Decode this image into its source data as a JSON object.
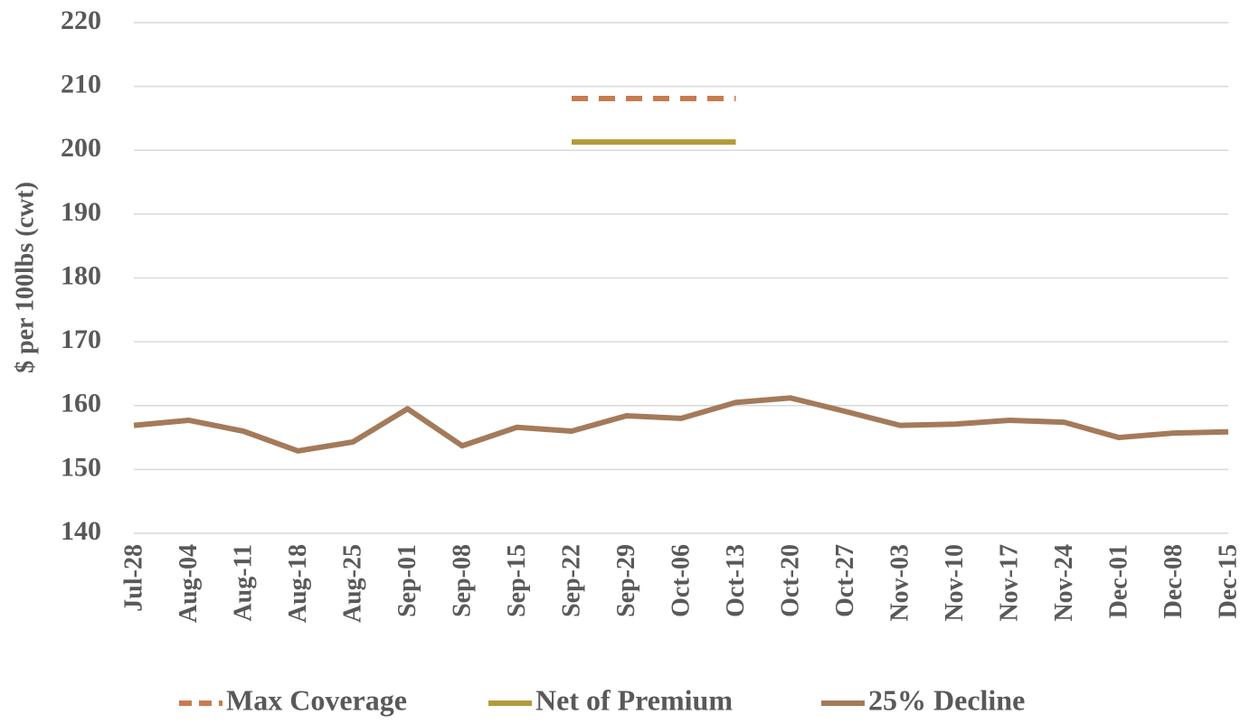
{
  "chart_data": {
    "type": "line",
    "y_label": "$ per 100lbs (cwt)",
    "categories": [
      "Jul-28",
      "Aug-04",
      "Aug-11",
      "Aug-18",
      "Aug-25",
      "Sep-01",
      "Sep-08",
      "Sep-15",
      "Sep-22",
      "Sep-29",
      "Oct-06",
      "Oct-13",
      "Oct-20",
      "Oct-27",
      "Nov-03",
      "Nov-10",
      "Nov-17",
      "Nov-24",
      "Dec-01",
      "Dec-08",
      "Dec-15"
    ],
    "series": [
      {
        "name": "Max Coverage",
        "color": "#c97b4f",
        "dashed": true,
        "values": [
          null,
          null,
          null,
          null,
          null,
          null,
          null,
          null,
          208.1,
          208.1,
          208.1,
          208.1,
          null,
          null,
          null,
          null,
          null,
          null,
          null,
          null,
          null
        ]
      },
      {
        "name": "Net of Premium",
        "color": "#b39b3b",
        "dashed": false,
        "values": [
          null,
          null,
          null,
          null,
          null,
          null,
          null,
          null,
          201.3,
          201.3,
          201.3,
          201.3,
          null,
          null,
          null,
          null,
          null,
          null,
          null,
          null,
          null
        ]
      },
      {
        "name": "25% Decline",
        "color": "#a47a5a",
        "dashed": false,
        "values": [
          156.9,
          157.7,
          156.0,
          152.9,
          154.3,
          159.5,
          153.7,
          156.6,
          156.0,
          158.4,
          158.0,
          160.5,
          161.2,
          159.1,
          156.9,
          157.1,
          157.7,
          157.4,
          155.0,
          155.7,
          155.9
        ]
      }
    ],
    "ylim": [
      140,
      220
    ],
    "yticks": [
      140,
      150,
      160,
      170,
      180,
      190,
      200,
      210,
      220
    ],
    "grid": true
  }
}
